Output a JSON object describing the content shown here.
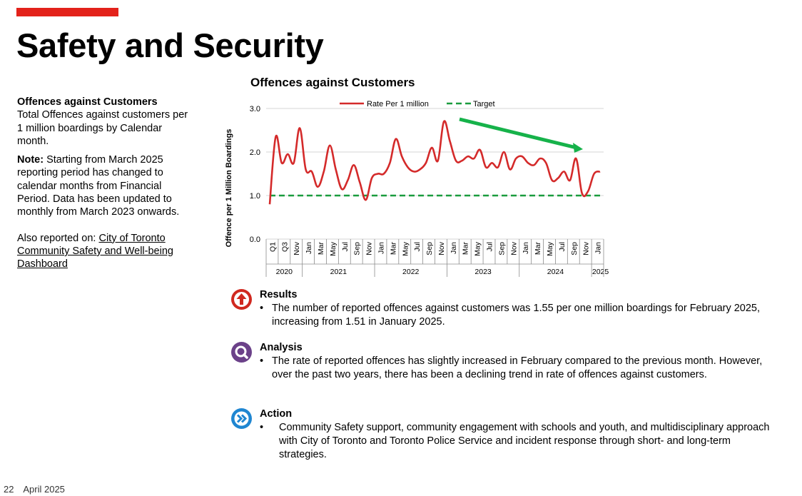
{
  "page": {
    "title": "Safety and Security",
    "footer_page": "22",
    "footer_date": "April 2025"
  },
  "left": {
    "heading": "Offences against Customers",
    "description": "Total Offences against customers per 1 million boardings by Calendar month.",
    "note_label": "Note:",
    "note_text": "Starting from March 2025 reporting period has changed to calendar months from Financial Period. Data has been updated to monthly from March 2023 onwards.",
    "also_label": "Also reported on:",
    "link_text": "City of Toronto Community Safety and Well-being Dashboard"
  },
  "chart_data": {
    "type": "line",
    "title": "Offences against Customers",
    "ylabel": "Offence per 1 Million Boardings",
    "xlabel": "",
    "ylim": [
      0,
      3
    ],
    "yticks": [
      "0.0",
      "1.0",
      "2.0",
      "3.0"
    ],
    "grid": true,
    "legend_position": "top",
    "series": [
      {
        "name": "Rate Per 1 million",
        "color": "#d42a2a",
        "values": [
          0.8,
          2.35,
          1.75,
          1.95,
          1.75,
          2.55,
          1.6,
          1.55,
          1.2,
          1.55,
          2.15,
          1.6,
          1.15,
          1.35,
          1.7,
          1.3,
          0.9,
          1.4,
          1.5,
          1.5,
          1.75,
          2.3,
          1.9,
          1.65,
          1.55,
          1.6,
          1.75,
          2.1,
          1.8,
          2.7,
          2.25,
          1.8,
          1.8,
          1.9,
          1.85,
          2.05,
          1.65,
          1.75,
          1.65,
          2.0,
          1.6,
          1.85,
          1.9,
          1.75,
          1.7,
          1.85,
          1.75,
          1.35,
          1.4,
          1.55,
          1.35,
          1.85,
          1.05,
          1.1,
          1.5,
          1.55
        ]
      },
      {
        "name": "Target",
        "color": "#1a9c3e",
        "dashed": true,
        "values": [
          1.0,
          1.0
        ]
      }
    ],
    "x_ticks": [
      "Q1",
      "Q3",
      "Nov",
      "Jan",
      "Mar",
      "May",
      "Jul",
      "Sep",
      "Nov",
      "Jan",
      "Mar",
      "May",
      "Jul",
      "Sep",
      "Nov",
      "Jan",
      "Mar",
      "May",
      "Jul",
      "Sep",
      "Nov",
      "Jan",
      "Mar",
      "May",
      "Jul",
      "Sep",
      "Nov",
      "Jan"
    ],
    "years": [
      "2020",
      "2021",
      "2022",
      "2023",
      "2024",
      "2025"
    ],
    "annotation": "green trend arrow indicating decline",
    "annotation_color": "#16b24a"
  },
  "sections": {
    "results": {
      "heading": "Results",
      "icon": "up-arrow-icon",
      "color": "#d0281f",
      "bullet": "•",
      "text": "The number of reported offences against customers was 1.55 per one million boardings for February 2025, increasing from 1.51 in January 2025."
    },
    "analysis": {
      "heading": "Analysis",
      "icon": "magnifier-icon",
      "color": "#6b4189",
      "bullet": "•",
      "text": "The rate of reported offences has slightly increased in February compared to the previous month. However, over the past two years, there has been a declining trend in rate of offences against customers."
    },
    "action": {
      "heading": "Action",
      "icon": "double-chevron-icon",
      "color": "#1f86d1",
      "bullet": "•",
      "text": "Community Safety support, community engagement with schools and youth, and multidisciplinary approach with City of Toronto and Toronto Police Service and incident response through short- and long-term strategies."
    }
  }
}
